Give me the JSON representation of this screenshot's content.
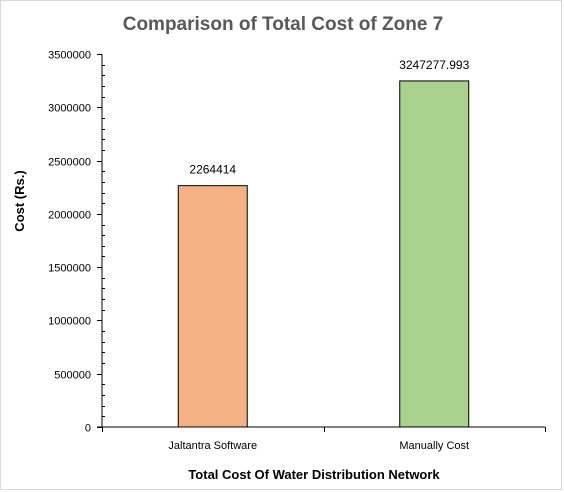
{
  "chart_data": {
    "type": "bar",
    "title": "Comparison of Total Cost of Zone 7",
    "xlabel": "Total Cost Of Water Distribution Network",
    "ylabel": "Cost (Rs.)",
    "categories": [
      "Jaltantra Software",
      "Manually Cost"
    ],
    "values": [
      2264414,
      3247277.993
    ],
    "data_labels": [
      "2264414",
      "3247277.993"
    ],
    "bar_colors": [
      "#f4b183",
      "#a9d18e"
    ],
    "ylim": [
      0,
      3500000
    ],
    "yticks": [
      0,
      500000,
      1000000,
      1500000,
      2000000,
      2500000,
      3000000,
      3500000
    ],
    "ytick_labels": [
      "0",
      "500000",
      "1000000",
      "1500000",
      "2000000",
      "2500000",
      "3000000",
      "3500000"
    ],
    "grid": false,
    "legend": false
  }
}
